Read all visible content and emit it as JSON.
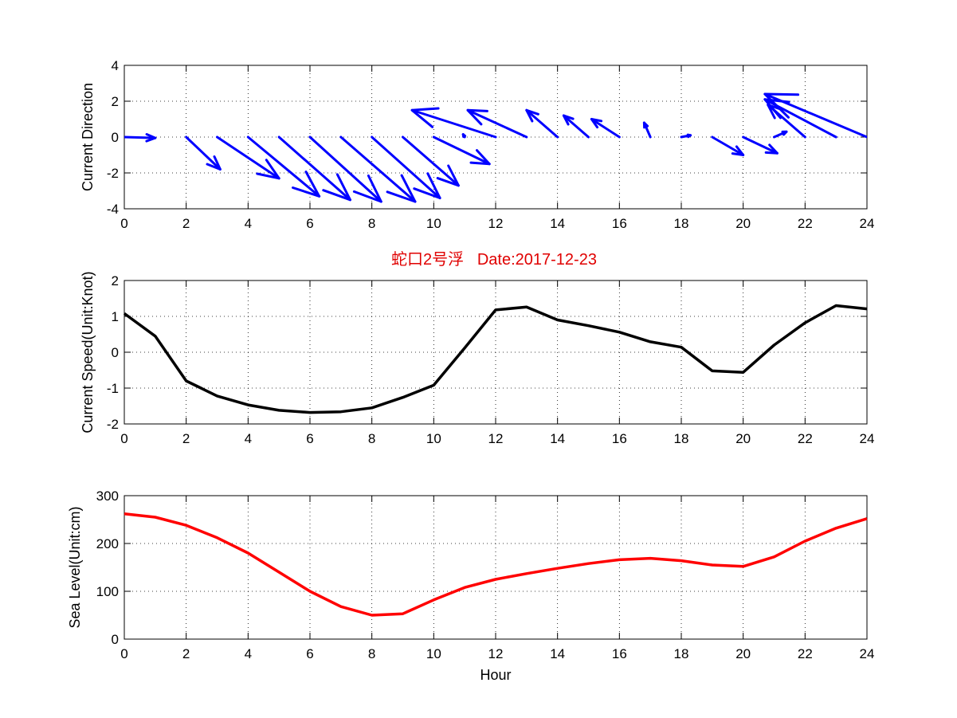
{
  "chart_data": [
    {
      "type": "quiver",
      "ylabel": "Current Direction",
      "xlim": [
        0,
        24
      ],
      "ylim": [
        -4,
        4
      ],
      "xticks": [
        0,
        2,
        4,
        6,
        8,
        10,
        12,
        14,
        16,
        18,
        20,
        22,
        24
      ],
      "yticks": [
        -4,
        -2,
        0,
        2,
        4
      ],
      "grid": true,
      "color": "#0000ff",
      "vectors": [
        {
          "x": 0,
          "u": 1.0,
          "v": -0.05
        },
        {
          "x": 1,
          "u": 0.0,
          "v": 0.0
        },
        {
          "x": 2,
          "u": 1.1,
          "v": -1.8
        },
        {
          "x": 3,
          "u": 2.0,
          "v": -2.3
        },
        {
          "x": 4,
          "u": 2.3,
          "v": -3.3
        },
        {
          "x": 5,
          "u": 2.3,
          "v": -3.5
        },
        {
          "x": 6,
          "u": 2.3,
          "v": -3.6
        },
        {
          "x": 7,
          "u": 2.4,
          "v": -3.6
        },
        {
          "x": 8,
          "u": 2.2,
          "v": -3.4
        },
        {
          "x": 9,
          "u": 1.8,
          "v": -2.7
        },
        {
          "x": 10,
          "u": 1.8,
          "v": -1.5
        },
        {
          "x": 11,
          "u": -0.05,
          "v": 0.15
        },
        {
          "x": 12,
          "u": -2.7,
          "v": 1.5
        },
        {
          "x": 13,
          "u": -1.9,
          "v": 1.5
        },
        {
          "x": 14,
          "u": -1.0,
          "v": 1.5
        },
        {
          "x": 15,
          "u": -0.8,
          "v": 1.2
        },
        {
          "x": 16,
          "u": -0.9,
          "v": 1.0
        },
        {
          "x": 17,
          "u": -0.2,
          "v": 0.8
        },
        {
          "x": 18,
          "u": 0.3,
          "v": 0.1
        },
        {
          "x": 19,
          "u": 1.0,
          "v": -1.0
        },
        {
          "x": 20,
          "u": 1.1,
          "v": -0.9
        },
        {
          "x": 21,
          "u": 0.4,
          "v": 0.3
        },
        {
          "x": 22,
          "u": -1.2,
          "v": 1.8
        },
        {
          "x": 23,
          "u": -2.3,
          "v": 2.1
        },
        {
          "x": 24,
          "u": -3.3,
          "v": 2.4
        }
      ]
    },
    {
      "type": "line",
      "title": "蛇口2号浮   Date:2017-12-23",
      "ylabel": "Current Speed(Unit:Knot)",
      "xlim": [
        0,
        24
      ],
      "ylim": [
        -2,
        2
      ],
      "xticks": [
        0,
        2,
        4,
        6,
        8,
        10,
        12,
        14,
        16,
        18,
        20,
        22,
        24
      ],
      "yticks": [
        -2,
        -1,
        0,
        1,
        2
      ],
      "grid": true,
      "color": "#000000",
      "x": [
        0,
        1,
        2,
        3,
        4,
        5,
        6,
        7,
        8,
        9,
        10,
        11,
        12,
        13,
        14,
        15,
        16,
        17,
        18,
        19,
        20,
        21,
        22,
        23,
        24
      ],
      "y": [
        1.08,
        0.45,
        -0.8,
        -1.22,
        -1.47,
        -1.62,
        -1.68,
        -1.66,
        -1.55,
        -1.26,
        -0.92,
        0.12,
        1.18,
        1.26,
        0.9,
        0.74,
        0.56,
        0.29,
        0.14,
        -0.52,
        -0.56,
        0.2,
        0.82,
        1.3,
        1.21
      ]
    },
    {
      "type": "line",
      "ylabel": "Sea Level(Unit:cm)",
      "xlabel": "Hour",
      "xlim": [
        0,
        24
      ],
      "ylim": [
        0,
        300
      ],
      "xticks": [
        0,
        2,
        4,
        6,
        8,
        10,
        12,
        14,
        16,
        18,
        20,
        22,
        24
      ],
      "yticks": [
        0,
        100,
        200,
        300
      ],
      "grid": true,
      "color": "#ff0000",
      "x": [
        0,
        1,
        2,
        3,
        4,
        5,
        6,
        7,
        8,
        9,
        10,
        11,
        12,
        13,
        14,
        15,
        16,
        17,
        18,
        19,
        20,
        21,
        22,
        23,
        24
      ],
      "y": [
        262,
        255,
        238,
        212,
        180,
        140,
        100,
        68,
        50,
        53,
        82,
        108,
        125,
        137,
        148,
        158,
        166,
        169,
        164,
        155,
        152,
        172,
        205,
        232,
        252
      ]
    }
  ]
}
